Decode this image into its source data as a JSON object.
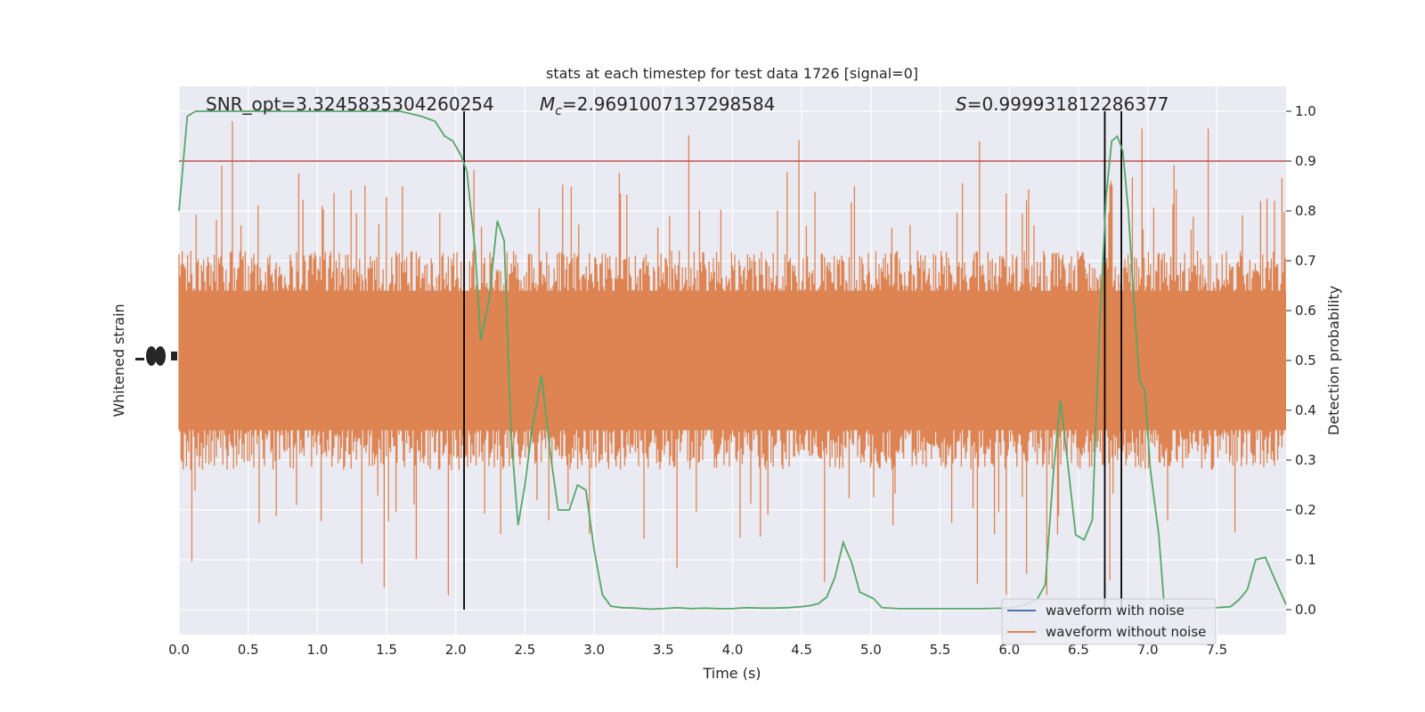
{
  "chart_data": {
    "type": "line",
    "title": "stats at each timestep for test data 1726 [signal=0]",
    "xlabel": "Time (s)",
    "ylabel_left": "Whitened strain",
    "ylabel_right": "Detection probability",
    "xlim": [
      0,
      8
    ],
    "ylim_right": [
      -0.05,
      1.05
    ],
    "grid": true,
    "legend_placement": "lower-right",
    "x_ticks": [
      "0.0",
      "0.5",
      "1.0",
      "1.5",
      "2.0",
      "2.5",
      "3.0",
      "3.5",
      "4.0",
      "4.5",
      "5.0",
      "5.5",
      "6.0",
      "6.5",
      "7.0",
      "7.5"
    ],
    "y_right_ticks": [
      "0.0",
      "0.1",
      "0.2",
      "0.3",
      "0.4",
      "0.5",
      "0.6",
      "0.7",
      "0.8",
      "0.9",
      "1.0"
    ],
    "annotations": {
      "snr": "SNR_opt=3.3245835304260254",
      "mc_prefix": "M",
      "mc_sub": "c",
      "mc_value": "=2.9691007137298584",
      "s_symbol": "S",
      "s_value": "=0.999931812286377"
    },
    "threshold": 0.9,
    "vertical_lines_x": [
      2.06,
      6.69,
      6.81
    ],
    "legend": [
      "waveform with noise",
      "waveform without noise"
    ],
    "colors": {
      "noise_band": "#dd8452",
      "probability": "#55a868",
      "threshold": "#c44e52",
      "vlines": "#000000",
      "with_noise": "#4c72b0",
      "background": "#eaeaf2"
    },
    "noise_band": {
      "typical_upper": 0.7,
      "typical_lower": 0.3,
      "spike_max": 0.98,
      "spike_min": 0.01
    },
    "series": [
      {
        "name": "Detection probability",
        "x": [
          0.0,
          0.06,
          0.12,
          0.2,
          0.3,
          0.4,
          0.6,
          0.8,
          1.0,
          1.2,
          1.4,
          1.6,
          1.75,
          1.85,
          1.92,
          1.98,
          2.04,
          2.08,
          2.14,
          2.18,
          2.24,
          2.3,
          2.35,
          2.4,
          2.45,
          2.5,
          2.55,
          2.62,
          2.68,
          2.74,
          2.82,
          2.88,
          2.94,
          3.0,
          3.06,
          3.12,
          3.2,
          3.3,
          3.4,
          3.5,
          3.6,
          3.7,
          3.8,
          3.9,
          4.0,
          4.1,
          4.2,
          4.3,
          4.4,
          4.5,
          4.56,
          4.62,
          4.68,
          4.74,
          4.8,
          4.86,
          4.92,
          4.96,
          5.02,
          5.08,
          5.2,
          5.4,
          5.6,
          5.8,
          6.0,
          6.1,
          6.2,
          6.26,
          6.32,
          6.37,
          6.42,
          6.48,
          6.54,
          6.6,
          6.65,
          6.7,
          6.74,
          6.78,
          6.82,
          6.86,
          6.9,
          6.94,
          6.98,
          7.02,
          7.08,
          7.12,
          7.2,
          7.3,
          7.4,
          7.5,
          7.6,
          7.66,
          7.72,
          7.78,
          7.85,
          7.92,
          8.0
        ],
        "values": [
          0.8,
          0.99,
          1.0,
          1.0,
          1.0,
          1.0,
          1.0,
          1.0,
          1.0,
          1.0,
          1.0,
          1.0,
          0.99,
          0.98,
          0.95,
          0.94,
          0.91,
          0.88,
          0.72,
          0.54,
          0.62,
          0.78,
          0.74,
          0.35,
          0.17,
          0.25,
          0.36,
          0.47,
          0.32,
          0.2,
          0.2,
          0.25,
          0.24,
          0.12,
          0.03,
          0.007,
          0.004,
          0.003,
          0.001,
          0.002,
          0.004,
          0.002,
          0.003,
          0.002,
          0.002,
          0.004,
          0.003,
          0.003,
          0.004,
          0.006,
          0.008,
          0.012,
          0.025,
          0.065,
          0.135,
          0.095,
          0.035,
          0.03,
          0.022,
          0.004,
          0.002,
          0.002,
          0.002,
          0.002,
          0.003,
          0.008,
          0.02,
          0.05,
          0.28,
          0.42,
          0.3,
          0.15,
          0.14,
          0.18,
          0.55,
          0.83,
          0.94,
          0.95,
          0.92,
          0.8,
          0.62,
          0.46,
          0.44,
          0.28,
          0.15,
          0.005,
          0.003,
          0.003,
          0.003,
          0.004,
          0.006,
          0.02,
          0.04,
          0.1,
          0.105,
          0.06,
          0.01
        ]
      }
    ]
  }
}
